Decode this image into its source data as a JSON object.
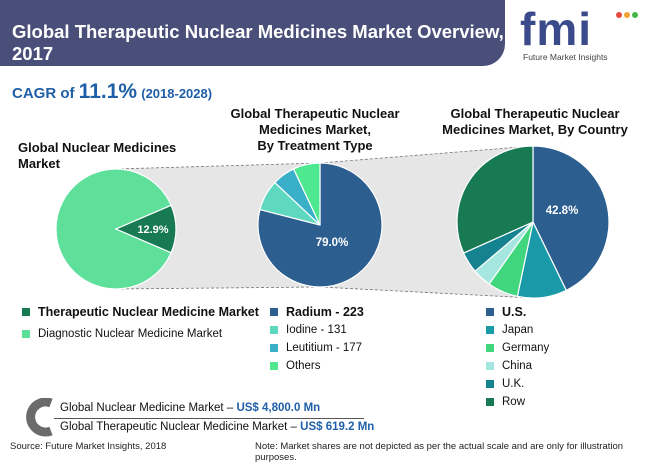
{
  "header": {
    "title": "Global Therapeutic Nuclear Medicines Market Overview, 2017",
    "logo_text": "fmi",
    "logo_subtitle": "Future Market Insights"
  },
  "cagr": {
    "prefix": "CAGR of",
    "value": "11.1%",
    "period": "(2018-2028)"
  },
  "colors": {
    "title_bar": "#4a4f7a",
    "accent_blue": "#1f5fa8",
    "therapeutic": "#187a52",
    "diagnostic": "#5ee09a",
    "radium": "#2c5e8f",
    "iodine": "#5fd8c0",
    "leutitium": "#3ab0c8",
    "others": "#4ee890",
    "us": "#2c5e8f",
    "japan": "#1a9aa8",
    "germany": "#3fd67e",
    "china": "#a6e6e0",
    "uk": "#158290",
    "row": "#187a52"
  },
  "chart_data": [
    {
      "type": "pie",
      "title": "Global Nuclear Medicines Market",
      "labels": [
        "Therapeutic Nuclear Medicine Market",
        "Diagnostic Nuclear Medicine Market"
      ],
      "values": [
        12.9,
        87.1
      ],
      "data_labels": [
        "12.9%",
        ""
      ]
    },
    {
      "type": "pie",
      "title": "Global Therapeutic Nuclear Medicines Market, By Treatment Type",
      "labels": [
        "Radium - 223",
        "Iodine - 131",
        "Leutitium - 177",
        "Others"
      ],
      "values": [
        79.0,
        8.0,
        6.0,
        7.0
      ],
      "data_labels": [
        "79.0%",
        "",
        "",
        ""
      ]
    },
    {
      "type": "pie",
      "title": "Global Therapeutic Nuclear Medicines Market, By Country",
      "labels": [
        "U.S.",
        "Japan",
        "Germany",
        "China",
        "U.K.",
        "Row"
      ],
      "values": [
        42.8,
        10.5,
        6.5,
        4.0,
        4.5,
        31.7
      ],
      "data_labels": [
        "42.8%",
        "",
        "",
        "",
        "",
        ""
      ]
    }
  ],
  "chart_titles": {
    "c1": "Global Nuclear Medicines Market",
    "c2_l1": "Global Therapeutic Nuclear",
    "c2_l2": "Medicines Market,",
    "c2_l3": "By Treatment Type",
    "c3_l1": "Global Therapeutic Nuclear",
    "c3_l2": "Medicines Market, By Country"
  },
  "legend1": [
    "Therapeutic Nuclear Medicine Market",
    "Diagnostic Nuclear Medicine Market"
  ],
  "legend2": [
    "Radium - 223",
    "Iodine - 131",
    "Leutitium - 177",
    "Others"
  ],
  "legend3": [
    "U.S.",
    "Japan",
    "Germany",
    "China",
    "U.K.",
    "Row"
  ],
  "totals": {
    "line1_label": "Global Nuclear Medicine Market",
    "line1_dash": "–",
    "line1_value": "US$ 4,800.0 Mn",
    "line2_label": "Global Therapeutic Nuclear Medicine  Market",
    "line2_dash": "–",
    "line2_value": "US$ 619.2 Mn"
  },
  "footer": {
    "source": "Source: Future Market Insights, 2018",
    "note": "Note: Market shares are not depicted as per the actual scale and are only for illustration purposes."
  }
}
